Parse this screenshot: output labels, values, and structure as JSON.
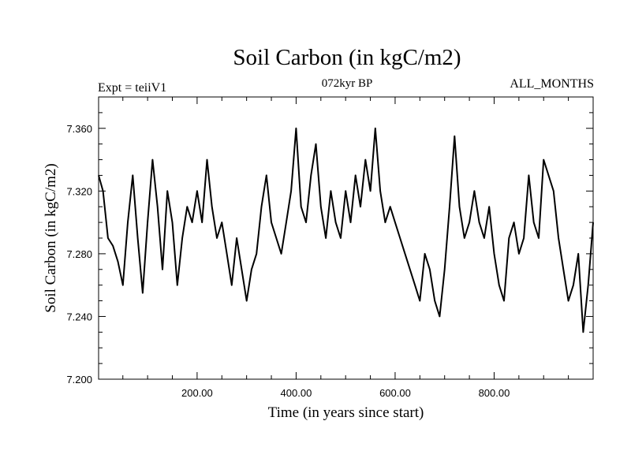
{
  "chart_data": {
    "type": "line",
    "title": "Soil Carbon (in kgC/m2)",
    "subtitle": "072kyr BP",
    "left_label": "Expt = teiiV1",
    "right_label": "ALL_MONTHS",
    "xlabel": "Time (in years since start)",
    "ylabel": "Soil Carbon (in kgC/m2)",
    "xlim": [
      1,
      1000
    ],
    "ylim": [
      7.2,
      7.38
    ],
    "x_ticks": [
      {
        "value": 200,
        "label": "200.00"
      },
      {
        "value": 400,
        "label": "400.00"
      },
      {
        "value": 600,
        "label": "600.00"
      },
      {
        "value": 800,
        "label": "800.00"
      }
    ],
    "y_ticks": [
      {
        "value": 7.2,
        "label": "7.200"
      },
      {
        "value": 7.24,
        "label": "7.240"
      },
      {
        "value": 7.28,
        "label": "7.280"
      },
      {
        "value": 7.32,
        "label": "7.320"
      },
      {
        "value": 7.36,
        "label": "7.360"
      }
    ],
    "grid": false,
    "series": [
      {
        "color": "#000000",
        "x": [
          1,
          10,
          20,
          30,
          40,
          50,
          60,
          70,
          80,
          90,
          100,
          110,
          120,
          130,
          140,
          150,
          160,
          170,
          180,
          190,
          200,
          210,
          220,
          230,
          240,
          250,
          260,
          270,
          280,
          290,
          300,
          310,
          320,
          330,
          340,
          350,
          360,
          370,
          380,
          390,
          400,
          410,
          420,
          430,
          440,
          450,
          460,
          470,
          480,
          490,
          500,
          510,
          520,
          530,
          540,
          550,
          560,
          570,
          580,
          590,
          600,
          610,
          620,
          630,
          640,
          650,
          660,
          670,
          680,
          690,
          700,
          710,
          720,
          730,
          740,
          750,
          760,
          770,
          780,
          790,
          800,
          810,
          820,
          830,
          840,
          850,
          860,
          870,
          880,
          890,
          900,
          910,
          920,
          930,
          940,
          950,
          960,
          970,
          980,
          990,
          1000
        ],
        "values": [
          7.33,
          7.32,
          7.29,
          7.285,
          7.275,
          7.26,
          7.3,
          7.33,
          7.29,
          7.255,
          7.3,
          7.34,
          7.31,
          7.27,
          7.32,
          7.3,
          7.26,
          7.29,
          7.31,
          7.3,
          7.32,
          7.3,
          7.34,
          7.31,
          7.29,
          7.3,
          7.28,
          7.26,
          7.29,
          7.27,
          7.25,
          7.27,
          7.28,
          7.31,
          7.33,
          7.3,
          7.29,
          7.28,
          7.3,
          7.32,
          7.36,
          7.31,
          7.3,
          7.33,
          7.35,
          7.31,
          7.29,
          7.32,
          7.3,
          7.29,
          7.32,
          7.3,
          7.33,
          7.31,
          7.34,
          7.32,
          7.36,
          7.32,
          7.3,
          7.31,
          7.3,
          7.29,
          7.28,
          7.27,
          7.26,
          7.25,
          7.28,
          7.27,
          7.25,
          7.24,
          7.27,
          7.31,
          7.355,
          7.31,
          7.29,
          7.3,
          7.32,
          7.3,
          7.29,
          7.31,
          7.28,
          7.26,
          7.25,
          7.29,
          7.3,
          7.28,
          7.29,
          7.33,
          7.3,
          7.29,
          7.34,
          7.33,
          7.32,
          7.29,
          7.27,
          7.25,
          7.26,
          7.28,
          7.23,
          7.26,
          7.3
        ]
      }
    ]
  }
}
